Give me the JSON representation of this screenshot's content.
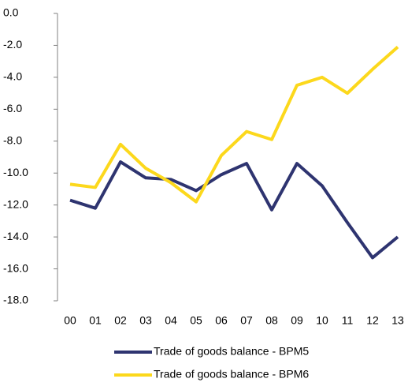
{
  "chart_data": {
    "type": "line",
    "categories": [
      "00",
      "01",
      "02",
      "03",
      "04",
      "05",
      "06",
      "07",
      "08",
      "09",
      "10",
      "11",
      "12",
      "13"
    ],
    "series": [
      {
        "name": "Trade of goods balance -  BPM5",
        "color": "#2e3470",
        "values": [
          -11.7,
          -12.2,
          -9.3,
          -10.3,
          -10.4,
          -11.1,
          -10.1,
          -9.4,
          -12.3,
          -9.4,
          -10.8,
          -13.1,
          -15.3,
          -14.0
        ]
      },
      {
        "name": "Trade of goods balance - BPM6",
        "color": "#fcd81c",
        "values": [
          -10.7,
          -10.9,
          -8.2,
          -9.7,
          -10.6,
          -11.8,
          -8.9,
          -7.4,
          -7.9,
          -4.5,
          -4.0,
          -5.0,
          -3.5,
          -2.1
        ]
      }
    ],
    "ylim": [
      -18,
      0
    ],
    "yticks": [
      {
        "value": 0,
        "label": "0.0"
      },
      {
        "value": -2,
        "label": "-2.0"
      },
      {
        "value": -4,
        "label": "-4.0"
      },
      {
        "value": -6,
        "label": "-6.0"
      },
      {
        "value": -8,
        "label": "-8.0"
      },
      {
        "value": -10,
        "label": "-10.0"
      },
      {
        "value": -12,
        "label": "-12.0"
      },
      {
        "value": -14,
        "label": "-14.0"
      },
      {
        "value": -16,
        "label": "-16.0"
      },
      {
        "value": -18,
        "label": "-18.0"
      }
    ]
  }
}
